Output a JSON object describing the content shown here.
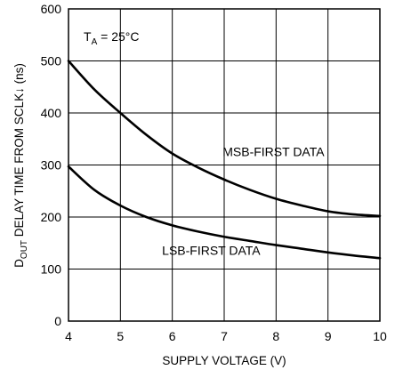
{
  "chart_data": {
    "type": "line",
    "xlabel": "SUPPLY VOLTAGE (V)",
    "ylabel": {
      "prefix_main": "D",
      "prefix_sub": "OUT",
      "rest": " DELAY TIME FROM SCLK↓ (ns)"
    },
    "xlim": [
      4,
      10
    ],
    "ylim": [
      0,
      600
    ],
    "xticks": [
      4,
      5,
      6,
      7,
      8,
      9,
      10
    ],
    "yticks": [
      0,
      100,
      200,
      300,
      400,
      500,
      600
    ],
    "grid": true,
    "annotation": {
      "main": "T",
      "sub": "A",
      "rest": " = 25°C"
    },
    "series": [
      {
        "name": "MSB-FIRST DATA",
        "x": [
          4,
          4.5,
          5,
          5.5,
          6,
          6.5,
          7,
          7.5,
          8,
          8.5,
          9,
          9.5,
          10
        ],
        "y": [
          500,
          445,
          400,
          358,
          322,
          295,
          272,
          252,
          235,
          222,
          211,
          205,
          202
        ]
      },
      {
        "name": "LSB-FIRST DATA",
        "x": [
          4,
          4.5,
          5,
          5.5,
          6,
          6.5,
          7,
          7.5,
          8,
          8.5,
          9,
          9.5,
          10
        ],
        "y": [
          297,
          252,
          222,
          200,
          184,
          172,
          162,
          154,
          146,
          139,
          132,
          126,
          121
        ]
      }
    ]
  }
}
